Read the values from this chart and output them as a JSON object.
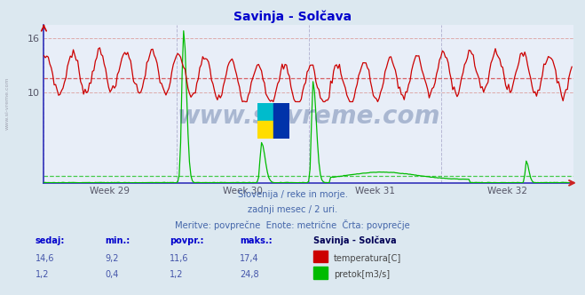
{
  "title": "Savinja - Solčava",
  "title_color": "#0000cc",
  "bg_color": "#dce8f0",
  "plot_bg_color": "#e8eef8",
  "grid_color": "#ddaaaa",
  "grid_color_v": "#aaaacc",
  "temp_color": "#cc0000",
  "flow_color": "#00bb00",
  "avg_temp": 11.6,
  "avg_flow_scaled": 0.18,
  "x_labels": [
    "Week 29",
    "Week 30",
    "Week 31",
    "Week 32"
  ],
  "y_ticks": [
    10,
    16
  ],
  "subtitle1": "Slovenija / reke in morje.",
  "subtitle2": "zadnji mesec / 2 uri.",
  "subtitle3": "Meritve: povprečne  Enote: metrične  Črta: povprečje",
  "subtitle_color": "#4466aa",
  "n_points": 360,
  "y_max": 17.5,
  "temp_base": 11.6,
  "temp_amp": 2.2,
  "temp_period": 18,
  "flow_scale": 0.68,
  "watermark_color": "#1a3a7a",
  "watermark_alpha": 0.3,
  "left_spine_color": "#3333bb",
  "bottom_spine_color": "#3333bb",
  "right_arrow_color": "#cc2222",
  "table_header_color": "#0000cc",
  "table_value_color": "#4455aa",
  "table_label_color": "#444444",
  "sedaj_label": "sedaj:",
  "min_label": "min.:",
  "povpr_label": "povpr.:",
  "maks_label": "maks.:",
  "station_label": "Savinja - Solčava",
  "temp_sedaj": "14,6",
  "temp_min": "9,2",
  "temp_povpr": "11,6",
  "temp_maks": "17,4",
  "temp_legend": "temperatura[C]",
  "flow_sedaj": "1,2",
  "flow_min": "0,4",
  "flow_povpr": "1,2",
  "flow_maks": "24,8",
  "flow_legend": "pretok[m3/s]"
}
